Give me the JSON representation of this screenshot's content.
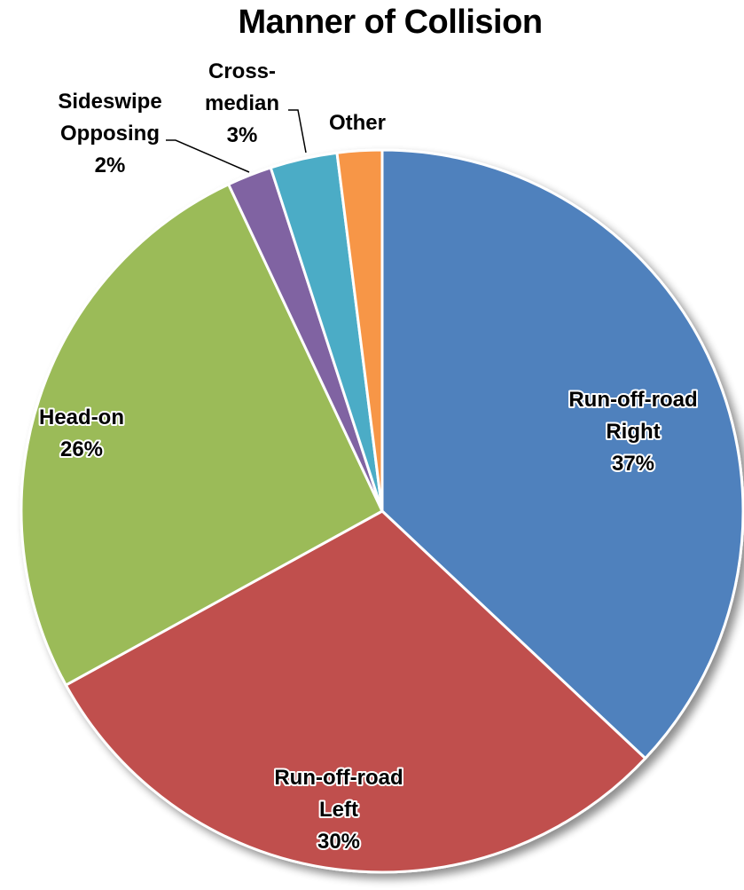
{
  "chart_data": {
    "type": "pie",
    "title": "Manner of Collision",
    "slices": [
      {
        "label_lines": [
          "Run-off-road",
          "Right"
        ],
        "percent_label": "37%",
        "value": 37,
        "color": "#4F81BD"
      },
      {
        "label_lines": [
          "Run-off-road",
          "Left"
        ],
        "percent_label": "30%",
        "value": 30,
        "color": "#C0504D"
      },
      {
        "label_lines": [
          "Head-on"
        ],
        "percent_label": "26%",
        "value": 26,
        "color": "#9BBB59"
      },
      {
        "label_lines": [
          "Sideswipe",
          "Opposing"
        ],
        "percent_label": "2%",
        "value": 2,
        "color": "#8064A2"
      },
      {
        "label_lines": [
          "Cross-",
          "median"
        ],
        "percent_label": "3%",
        "value": 3,
        "color": "#4BACC6"
      },
      {
        "label_lines": [
          "Other"
        ],
        "percent_label": "",
        "value": 2,
        "color": "#F79646"
      }
    ],
    "legend": "none",
    "label_placement": "data labels on slices, leader lines for small slices"
  }
}
